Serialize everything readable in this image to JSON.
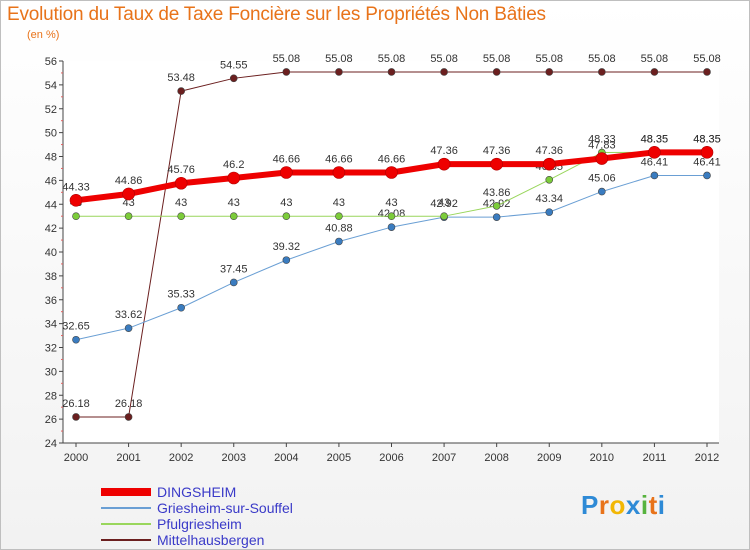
{
  "title": "Evolution du Taux de Taxe Foncière sur les Propriétés Non Bâties",
  "unit": "(en %)",
  "brand": {
    "name": "Proxiti",
    "letters": [
      "P",
      "r",
      "o",
      "x",
      "i",
      "t",
      "i"
    ],
    "colors": [
      "#2e8ad6",
      "#e8731a",
      "#f2b705",
      "#2e8ad6",
      "#57b33e",
      "#e8731a",
      "#2e8ad6"
    ]
  },
  "chart_data": {
    "type": "line",
    "title": "Evolution du Taux de Taxe Foncière sur les Propriétés Non Bâties",
    "ylabel": "(en %)",
    "xlabel": "",
    "ylim": [
      24,
      56
    ],
    "yticks": [
      24,
      26,
      28,
      30,
      32,
      34,
      36,
      38,
      40,
      42,
      44,
      46,
      48,
      50,
      52,
      54,
      56
    ],
    "categories": [
      "2000",
      "2001",
      "2002",
      "2003",
      "2004",
      "2005",
      "2006",
      "2007",
      "2008",
      "2009",
      "2010",
      "2011",
      "2012"
    ],
    "legend_position": "bottom-left",
    "grid": false,
    "series": [
      {
        "name": "Mittelhausbergen",
        "color": "#6b1f1f",
        "dot": "#6b1f1f",
        "width": 1,
        "values": [
          26.18,
          26.18,
          53.48,
          54.55,
          55.08,
          55.08,
          55.08,
          55.08,
          55.08,
          55.08,
          55.08,
          55.08,
          55.08
        ],
        "labels": [
          "26.18",
          "26.18",
          "53.48",
          "54.55",
          "55.08",
          "55.08",
          "55.08",
          "55.08",
          "55.08",
          "55.08",
          "55.08",
          "55.08",
          "55.08"
        ]
      },
      {
        "name": "Griesheim-sur-Souffel",
        "color": "#6a9fd4",
        "dot": "#3a7cc0",
        "width": 1,
        "values": [
          32.65,
          33.62,
          35.33,
          37.45,
          39.32,
          40.88,
          42.08,
          42.92,
          42.92,
          43.34,
          45.06,
          46.41,
          46.41
        ],
        "labels": [
          "32.65",
          "33.62",
          "35.33",
          "37.45",
          "39.32",
          "40.88",
          "42.08",
          "42.92",
          "42.92",
          "43.34",
          "45.06",
          "46.41",
          "46.41"
        ]
      },
      {
        "name": "Pfulgriesheim",
        "color": "#99d65c",
        "dot": "#7ccc3a",
        "width": 1,
        "values": [
          43,
          43,
          43,
          43,
          43,
          43,
          43,
          43,
          43.86,
          46.05,
          48.33,
          48.35,
          48.35
        ],
        "labels": [
          "43",
          "43",
          "43",
          "43",
          "43",
          "43",
          "43",
          "43",
          "43.86",
          "46.05",
          "48.33",
          "48.35",
          "48.35"
        ]
      },
      {
        "name": "DINGSHEIM",
        "color": "#ee0000",
        "dot": "#ee0000",
        "width": 6,
        "values": [
          44.33,
          44.86,
          45.76,
          46.2,
          46.66,
          46.66,
          46.66,
          47.36,
          47.36,
          47.36,
          47.83,
          48.35,
          48.35
        ],
        "labels": [
          "44.33",
          "44.86",
          "45.76",
          "46.2",
          "46.66",
          "46.66",
          "46.66",
          "47.36",
          "47.36",
          "47.36",
          "47.83",
          "48.35",
          "48.35"
        ]
      }
    ]
  }
}
